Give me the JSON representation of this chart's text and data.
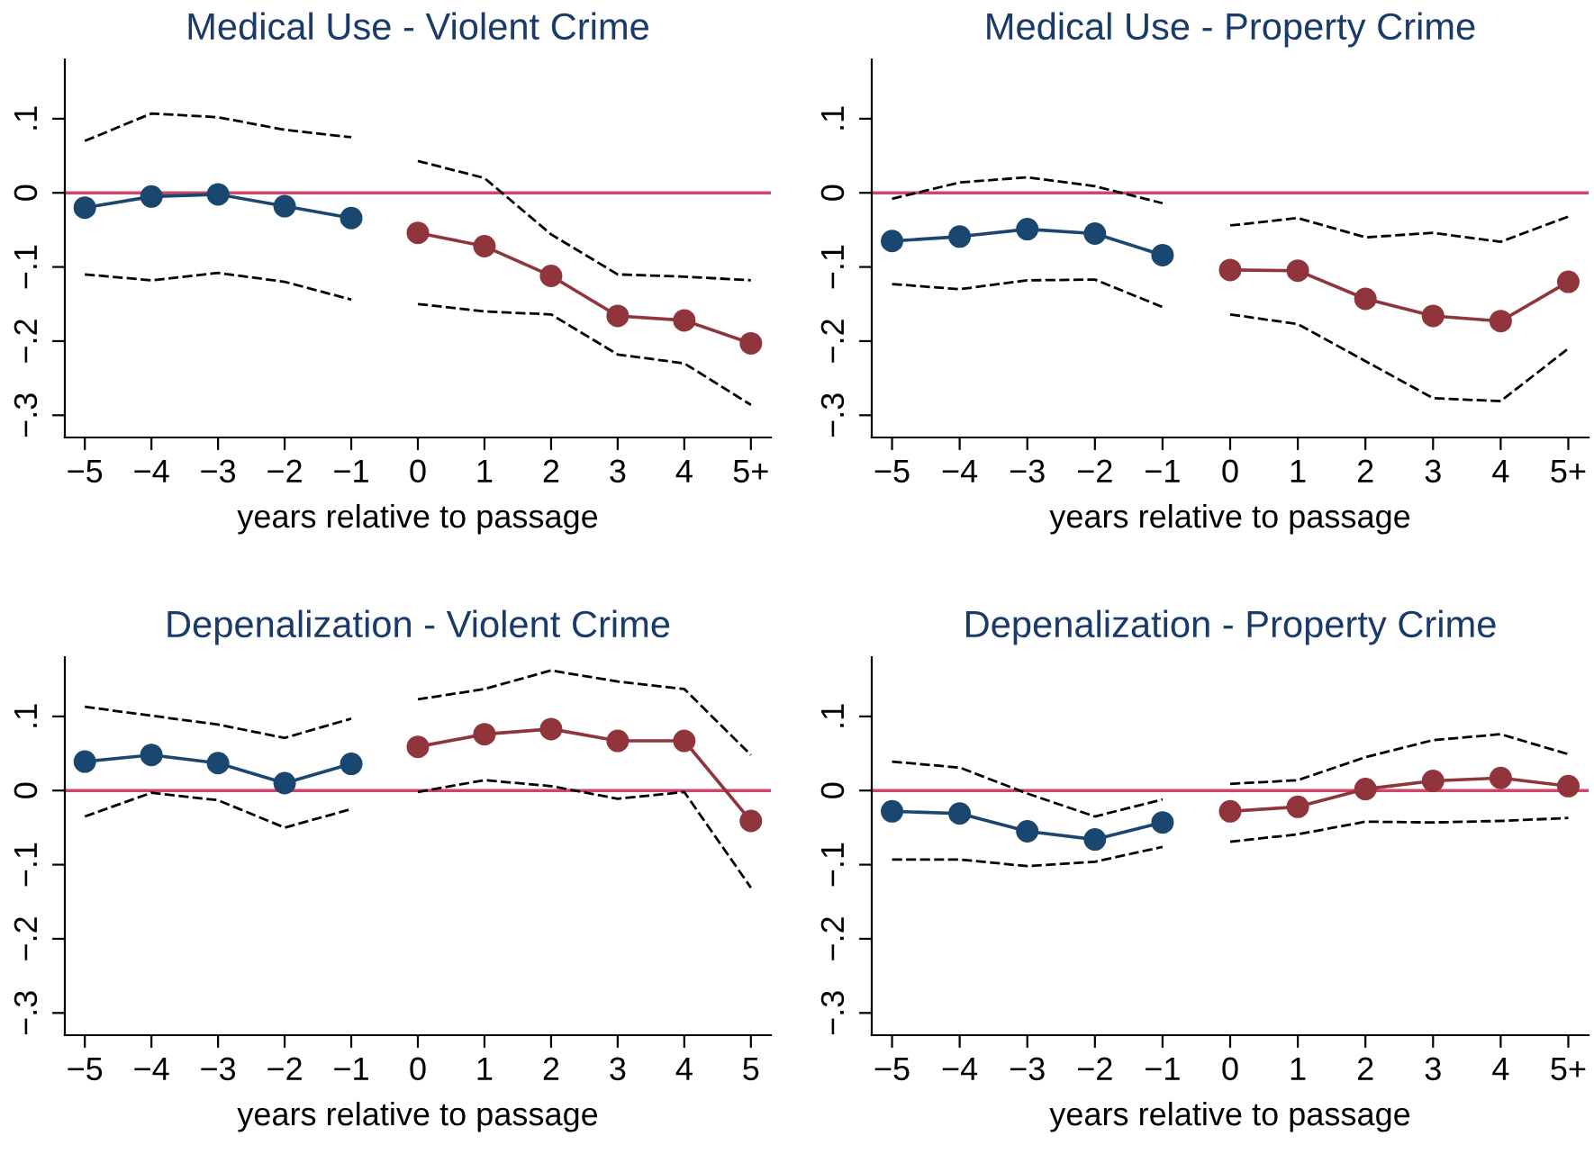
{
  "chart_data": [
    {
      "type": "line",
      "title": "Medical Use - Violent Crime",
      "xlabel": "years relative to passage",
      "categories": [
        "−5",
        "−4",
        "−3",
        "−2",
        "−1",
        "0",
        "1",
        "2",
        "3",
        "4",
        "5+"
      ],
      "ylim": [
        -0.33,
        0.18
      ],
      "yticks": [
        {
          "value": -0.3,
          "label": "−.3"
        },
        {
          "value": -0.2,
          "label": "−.2"
        },
        {
          "value": -0.1,
          "label": "−.1"
        },
        {
          "value": 0,
          "label": "0"
        },
        {
          "value": 0.1,
          "label": ".1"
        }
      ],
      "grid": false,
      "ref_lines": [
        {
          "axis": "y",
          "value": 0,
          "color": "#d0456a"
        }
      ],
      "series": [
        {
          "color": "#1a476f",
          "marker": "circle",
          "line_style": "solid",
          "values": [
            -0.02,
            -0.005,
            -0.002,
            -0.018,
            -0.034,
            null,
            null,
            null,
            null,
            null,
            null
          ]
        },
        {
          "color": "#90353b",
          "marker": "circle",
          "line_style": "solid",
          "values": [
            null,
            null,
            null,
            null,
            null,
            -0.054,
            -0.072,
            -0.112,
            -0.166,
            -0.172,
            -0.203
          ]
        },
        {
          "color": "#000000",
          "marker": "none",
          "line_style": "dashed",
          "values": [
            0.07,
            0.107,
            0.102,
            0.085,
            0.075,
            null,
            null,
            null,
            null,
            null,
            null
          ]
        },
        {
          "color": "#000000",
          "marker": "none",
          "line_style": "dashed",
          "values": [
            null,
            null,
            null,
            null,
            null,
            0.043,
            0.02,
            -0.056,
            -0.11,
            -0.113,
            -0.118
          ]
        },
        {
          "color": "#000000",
          "marker": "none",
          "line_style": "dashed",
          "values": [
            -0.11,
            -0.118,
            -0.108,
            -0.12,
            -0.144,
            null,
            null,
            null,
            null,
            null,
            null
          ]
        },
        {
          "color": "#000000",
          "marker": "none",
          "line_style": "dashed",
          "values": [
            null,
            null,
            null,
            null,
            null,
            -0.15,
            -0.16,
            -0.164,
            -0.218,
            -0.23,
            -0.286
          ]
        }
      ]
    },
    {
      "type": "line",
      "title": "Medical Use - Property Crime",
      "xlabel": "years relative to passage",
      "categories": [
        "−5",
        "−4",
        "−3",
        "−2",
        "−1",
        "0",
        "1",
        "2",
        "3",
        "4",
        "5+"
      ],
      "ylim": [
        -0.33,
        0.18
      ],
      "yticks": [
        {
          "value": -0.3,
          "label": "−.3"
        },
        {
          "value": -0.2,
          "label": "−.2"
        },
        {
          "value": -0.1,
          "label": "−.1"
        },
        {
          "value": 0,
          "label": "0"
        },
        {
          "value": 0.1,
          "label": ".1"
        }
      ],
      "grid": false,
      "ref_lines": [
        {
          "axis": "y",
          "value": 0,
          "color": "#d0456a"
        }
      ],
      "series": [
        {
          "color": "#1a476f",
          "marker": "circle",
          "line_style": "solid",
          "values": [
            -0.065,
            -0.059,
            -0.049,
            -0.055,
            -0.084,
            null,
            null,
            null,
            null,
            null,
            null
          ]
        },
        {
          "color": "#90353b",
          "marker": "circle",
          "line_style": "solid",
          "values": [
            null,
            null,
            null,
            null,
            null,
            -0.104,
            -0.105,
            -0.143,
            -0.166,
            -0.173,
            -0.12
          ]
        },
        {
          "color": "#000000",
          "marker": "none",
          "line_style": "dashed",
          "values": [
            -0.008,
            0.014,
            0.021,
            0.009,
            -0.014,
            null,
            null,
            null,
            null,
            null,
            null
          ]
        },
        {
          "color": "#000000",
          "marker": "none",
          "line_style": "dashed",
          "values": [
            null,
            null,
            null,
            null,
            null,
            -0.044,
            -0.034,
            -0.06,
            -0.054,
            -0.066,
            -0.032
          ]
        },
        {
          "color": "#000000",
          "marker": "none",
          "line_style": "dashed",
          "values": [
            -0.123,
            -0.13,
            -0.118,
            -0.117,
            -0.154,
            null,
            null,
            null,
            null,
            null,
            null
          ]
        },
        {
          "color": "#000000",
          "marker": "none",
          "line_style": "dashed",
          "values": [
            null,
            null,
            null,
            null,
            null,
            -0.164,
            -0.177,
            -0.227,
            -0.277,
            -0.281,
            -0.21
          ]
        }
      ]
    },
    {
      "type": "line",
      "title": "Depenalization - Violent Crime",
      "xlabel": "years relative to passage",
      "categories": [
        "−5",
        "−4",
        "−3",
        "−2",
        "−1",
        "0",
        "1",
        "2",
        "3",
        "4",
        "5"
      ],
      "ylim": [
        -0.33,
        0.18
      ],
      "yticks": [
        {
          "value": -0.3,
          "label": "−.3"
        },
        {
          "value": -0.2,
          "label": "−.2"
        },
        {
          "value": -0.1,
          "label": "−.1"
        },
        {
          "value": 0,
          "label": "0"
        },
        {
          "value": 0.1,
          "label": ".1"
        }
      ],
      "grid": false,
      "ref_lines": [
        {
          "axis": "y",
          "value": 0,
          "color": "#d0456a"
        }
      ],
      "series": [
        {
          "color": "#1a476f",
          "marker": "circle",
          "line_style": "solid",
          "values": [
            0.039,
            0.048,
            0.037,
            0.01,
            0.036,
            null,
            null,
            null,
            null,
            null,
            null
          ]
        },
        {
          "color": "#90353b",
          "marker": "circle",
          "line_style": "solid",
          "values": [
            null,
            null,
            null,
            null,
            null,
            0.059,
            0.076,
            0.083,
            0.067,
            0.067,
            -0.041
          ]
        },
        {
          "color": "#000000",
          "marker": "none",
          "line_style": "dashed",
          "values": [
            0.113,
            0.101,
            0.089,
            0.071,
            0.097,
            null,
            null,
            null,
            null,
            null,
            null
          ]
        },
        {
          "color": "#000000",
          "marker": "none",
          "line_style": "dashed",
          "values": [
            null,
            null,
            null,
            null,
            null,
            0.123,
            0.137,
            0.162,
            0.147,
            0.137,
            0.048
          ]
        },
        {
          "color": "#000000",
          "marker": "none",
          "line_style": "dashed",
          "values": [
            -0.035,
            -0.003,
            -0.013,
            -0.05,
            -0.025,
            null,
            null,
            null,
            null,
            null,
            null
          ]
        },
        {
          "color": "#000000",
          "marker": "none",
          "line_style": "dashed",
          "values": [
            null,
            null,
            null,
            null,
            null,
            -0.002,
            0.014,
            0.006,
            -0.011,
            -0.002,
            -0.131
          ]
        }
      ]
    },
    {
      "type": "line",
      "title": "Depenalization - Property Crime",
      "xlabel": "years relative to passage",
      "categories": [
        "−5",
        "−4",
        "−3",
        "−2",
        "−1",
        "0",
        "1",
        "2",
        "3",
        "4",
        "5+"
      ],
      "ylim": [
        -0.33,
        0.18
      ],
      "yticks": [
        {
          "value": -0.3,
          "label": "−.3"
        },
        {
          "value": -0.2,
          "label": "−.2"
        },
        {
          "value": -0.1,
          "label": "−.1"
        },
        {
          "value": 0,
          "label": "0"
        },
        {
          "value": 0.1,
          "label": ".1"
        }
      ],
      "grid": false,
      "ref_lines": [
        {
          "axis": "y",
          "value": 0,
          "color": "#d0456a"
        }
      ],
      "series": [
        {
          "color": "#1a476f",
          "marker": "circle",
          "line_style": "solid",
          "values": [
            -0.028,
            -0.031,
            -0.055,
            -0.066,
            -0.043,
            null,
            null,
            null,
            null,
            null,
            null
          ]
        },
        {
          "color": "#90353b",
          "marker": "circle",
          "line_style": "solid",
          "values": [
            null,
            null,
            null,
            null,
            null,
            -0.028,
            -0.022,
            0.002,
            0.013,
            0.017,
            0.006
          ]
        },
        {
          "color": "#000000",
          "marker": "none",
          "line_style": "dashed",
          "values": [
            0.039,
            0.031,
            -0.004,
            -0.035,
            -0.012,
            null,
            null,
            null,
            null,
            null,
            null
          ]
        },
        {
          "color": "#000000",
          "marker": "none",
          "line_style": "dashed",
          "values": [
            null,
            null,
            null,
            null,
            null,
            0.009,
            0.014,
            0.045,
            0.068,
            0.076,
            0.049
          ]
        },
        {
          "color": "#000000",
          "marker": "none",
          "line_style": "dashed",
          "values": [
            -0.093,
            -0.093,
            -0.102,
            -0.096,
            -0.076,
            null,
            null,
            null,
            null,
            null,
            null
          ]
        },
        {
          "color": "#000000",
          "marker": "none",
          "line_style": "dashed",
          "values": [
            null,
            null,
            null,
            null,
            null,
            -0.069,
            -0.059,
            -0.042,
            -0.043,
            -0.041,
            -0.037
          ]
        }
      ]
    }
  ]
}
